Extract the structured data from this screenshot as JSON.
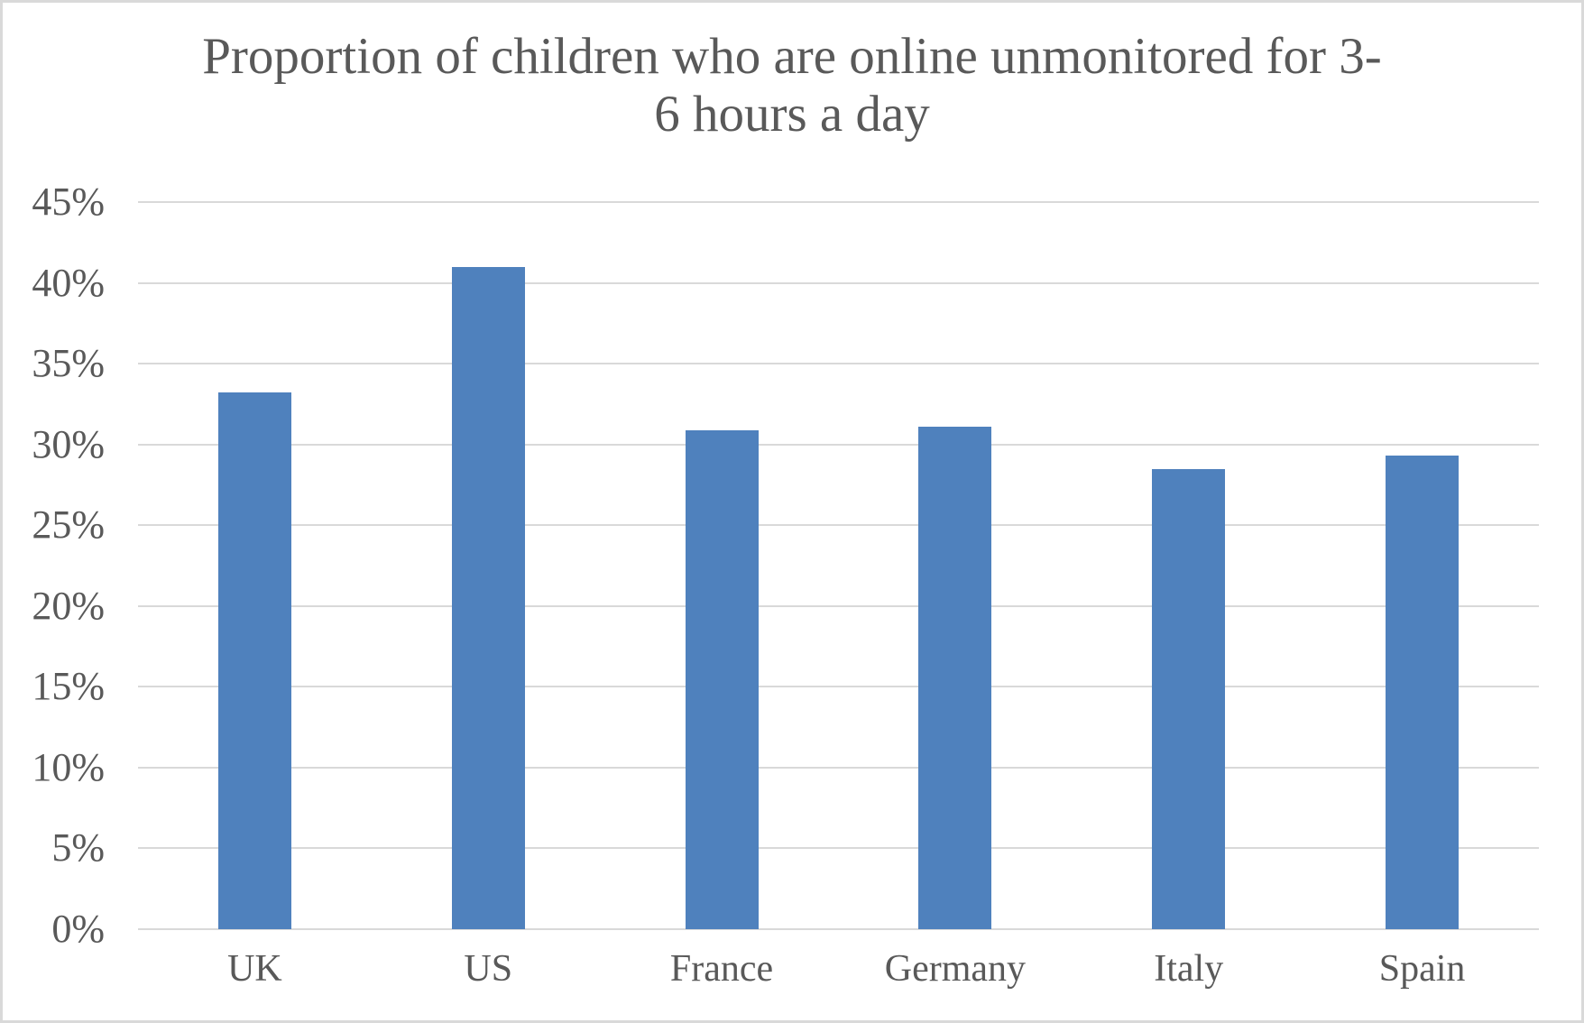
{
  "chart_data": {
    "type": "bar",
    "title": "Proportion of children who are online unmonitored for 3-6 hours a day",
    "title_lines": [
      "Proportion of children who are online unmonitored for 3-",
      "6 hours a day"
    ],
    "categories": [
      "UK",
      "US",
      "France",
      "Germany",
      "Italy",
      "Spain"
    ],
    "values": [
      33.2,
      41.0,
      30.9,
      31.1,
      28.5,
      29.3
    ],
    "series": [
      {
        "name": "Proportion of children online unmonitored 3-6 hours/day",
        "values": [
          33.2,
          41.0,
          30.9,
          31.1,
          28.5,
          29.3
        ]
      }
    ],
    "xlabel": "",
    "ylabel": "",
    "ylim": [
      0,
      45
    ],
    "ytick_step": 5,
    "ytick_labels": [
      "0%",
      "5%",
      "10%",
      "15%",
      "20%",
      "25%",
      "30%",
      "35%",
      "40%",
      "45%"
    ],
    "grid": true,
    "legend_position": "none",
    "colors": {
      "bar": "#4F81BD",
      "gridline": "#d9d9d9",
      "text": "#595959",
      "frame": "#d9d9d9",
      "background": "#ffffff"
    }
  }
}
